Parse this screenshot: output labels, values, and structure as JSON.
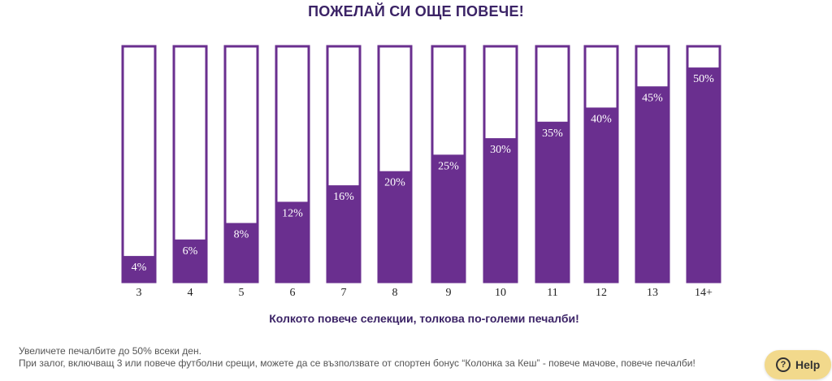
{
  "chart_data": {
    "type": "bar",
    "title": "ПОЖЕЛАЙ СИ ОЩЕ ПОВЕЧЕ!",
    "subtitle": "Колкото повече селекции, толкова по-големи печалби!",
    "categories": [
      "3",
      "4",
      "5",
      "6",
      "7",
      "8",
      "9",
      "10",
      "11",
      "12",
      "13",
      "14+"
    ],
    "values": [
      4,
      6,
      8,
      12,
      16,
      20,
      25,
      30,
      35,
      40,
      45,
      50
    ],
    "data_labels": [
      "4%",
      "6%",
      "8%",
      "12%",
      "16%",
      "20%",
      "25%",
      "30%",
      "35%",
      "40%",
      "45%",
      "50%"
    ],
    "fill_fraction": [
      0.11,
      0.18,
      0.25,
      0.34,
      0.41,
      0.47,
      0.54,
      0.61,
      0.68,
      0.74,
      0.83,
      0.91
    ],
    "xlabel": "",
    "ylabel": "",
    "color": "#6a2f8f",
    "grid": false
  },
  "footer": {
    "line1": "Увеличете печалбите до 50% всеки ден.",
    "line2": "При залог, включващ 3 или повече футболни срещи, можете да се възползвате от спортен бонус “Колонка за Кеш” - повече мачове, повече печалби!"
  },
  "help_button": {
    "icon": "question-icon",
    "label": "Help"
  }
}
